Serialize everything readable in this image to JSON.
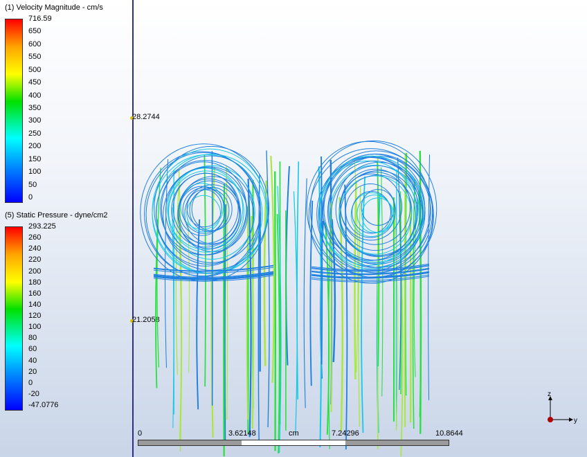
{
  "velocity_legend": {
    "title": "(1) Velocity Magnitude - cm/s",
    "ticks": [
      "716.59",
      "650",
      "600",
      "550",
      "500",
      "450",
      "400",
      "350",
      "300",
      "250",
      "200",
      "150",
      "100",
      "50",
      "0"
    ]
  },
  "pressure_legend": {
    "title": "(5) Static Pressure - dyne/cm2",
    "ticks": [
      "293.225",
      "260",
      "240",
      "220",
      "200",
      "180",
      "160",
      "140",
      "120",
      "100",
      "80",
      "60",
      "40",
      "20",
      "0",
      "-20",
      "-47.0776"
    ]
  },
  "probes": [
    {
      "label": "28.2744"
    },
    {
      "label": "21.2058"
    }
  ],
  "scale_bar": {
    "labels": [
      "0",
      "3.62148",
      "cm",
      "7.24296",
      "10.8644"
    ]
  },
  "axis_triad": {
    "z_label": "z",
    "y_label": "y"
  },
  "colors": {
    "streamline_blue": "#1e7fe0",
    "streamline_cyan": "#18c8e8",
    "streamline_green": "#28e040",
    "streamline_yellowgreen": "#a8e840",
    "vertical_line": "#2f2f8a"
  }
}
